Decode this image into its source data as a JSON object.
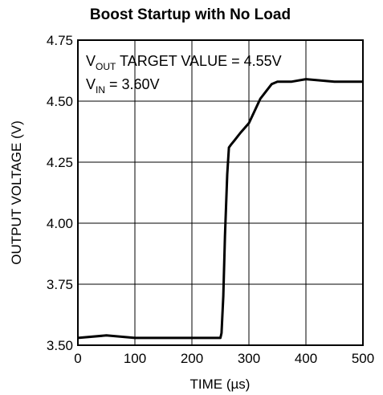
{
  "chart_data": {
    "type": "line",
    "title": "Boost Startup with No Load",
    "xlabel": "TIME (µs)",
    "ylabel": "OUTPUT VOLTAGE (V)",
    "xlim": [
      0,
      500
    ],
    "ylim": [
      3.5,
      4.75
    ],
    "xticks": [
      "0",
      "100",
      "200",
      "300",
      "400",
      "500"
    ],
    "yticks": [
      "3.50",
      "3.75",
      "4.00",
      "4.25",
      "4.50",
      "4.75"
    ],
    "grid": true,
    "annotations": [
      {
        "main": "V",
        "sub": "OUT",
        "rest": " TARGET VALUE = 4.55V"
      },
      {
        "main": "V",
        "sub": "IN",
        "rest": " = 3.60V"
      }
    ],
    "series": [
      {
        "x": [
          0,
          50,
          100,
          150,
          200,
          240,
          250,
          252,
          255,
          258,
          262,
          265,
          268,
          275,
          285,
          300,
          310,
          320,
          330,
          340,
          350,
          375,
          400,
          450,
          500
        ],
        "y": [
          3.53,
          3.54,
          3.53,
          3.53,
          3.53,
          3.53,
          3.53,
          3.55,
          3.7,
          3.95,
          4.2,
          4.31,
          4.32,
          4.34,
          4.37,
          4.41,
          4.46,
          4.51,
          4.54,
          4.57,
          4.58,
          4.58,
          4.59,
          4.58,
          4.58
        ]
      }
    ]
  }
}
